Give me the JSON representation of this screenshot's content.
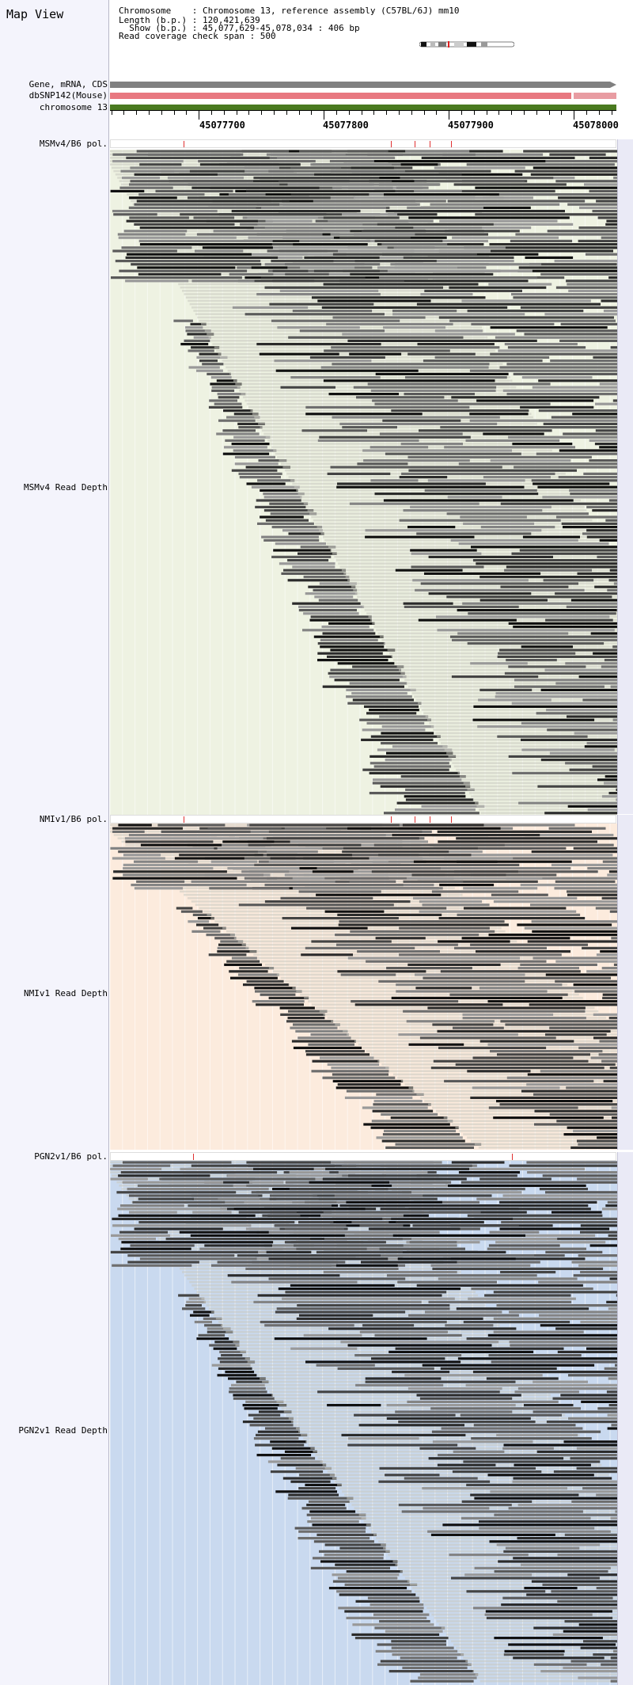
{
  "map_view": {
    "title": "Map View",
    "chromosome_line": "Chromosome    : Chromosome 13, reference assembly (C57BL/6J) mm10",
    "length_line": "Length (b.p.) : 120,421,639",
    "show_line": "  Show (b.p.) : 45,077,629-45,078,034 : 406 bp",
    "span_line": "Read coverage check span : 500"
  },
  "tracks": {
    "gene": {
      "label": "Gene, mRNA, CDS",
      "color": "#808080"
    },
    "dbsnp": {
      "label": "dbSNP142(Mouse)",
      "color": "#e87880"
    },
    "chromosome": {
      "label": "chromosome 13",
      "color": "#4a7a20"
    }
  },
  "ruler": {
    "start_bp": 45077629,
    "end_bp": 45078034,
    "labels": [
      "45077700",
      "45077800",
      "45077900",
      "45078000"
    ]
  },
  "strains": [
    {
      "pol_label": "MSMv4/B6 pol.",
      "depth_label": "MSMv4 Read Depth",
      "bg": "#eef2e2",
      "snps_bp": [
        45077687,
        45077853,
        45077872,
        45077884,
        45077901
      ]
    },
    {
      "pol_label": "NMIv1/B6 pol.",
      "depth_label": "NMIv1 Read Depth",
      "bg": "#fcebdd",
      "snps_bp": [
        45077687,
        45077853,
        45077872,
        45077884,
        45077901
      ]
    },
    {
      "pol_label": "PGN2v1/B6 pol.",
      "depth_label": "PGN2v1 Read Depth",
      "bg": "#c9d9ef",
      "snps_bp": [
        45077695,
        45077950
      ]
    }
  ]
}
